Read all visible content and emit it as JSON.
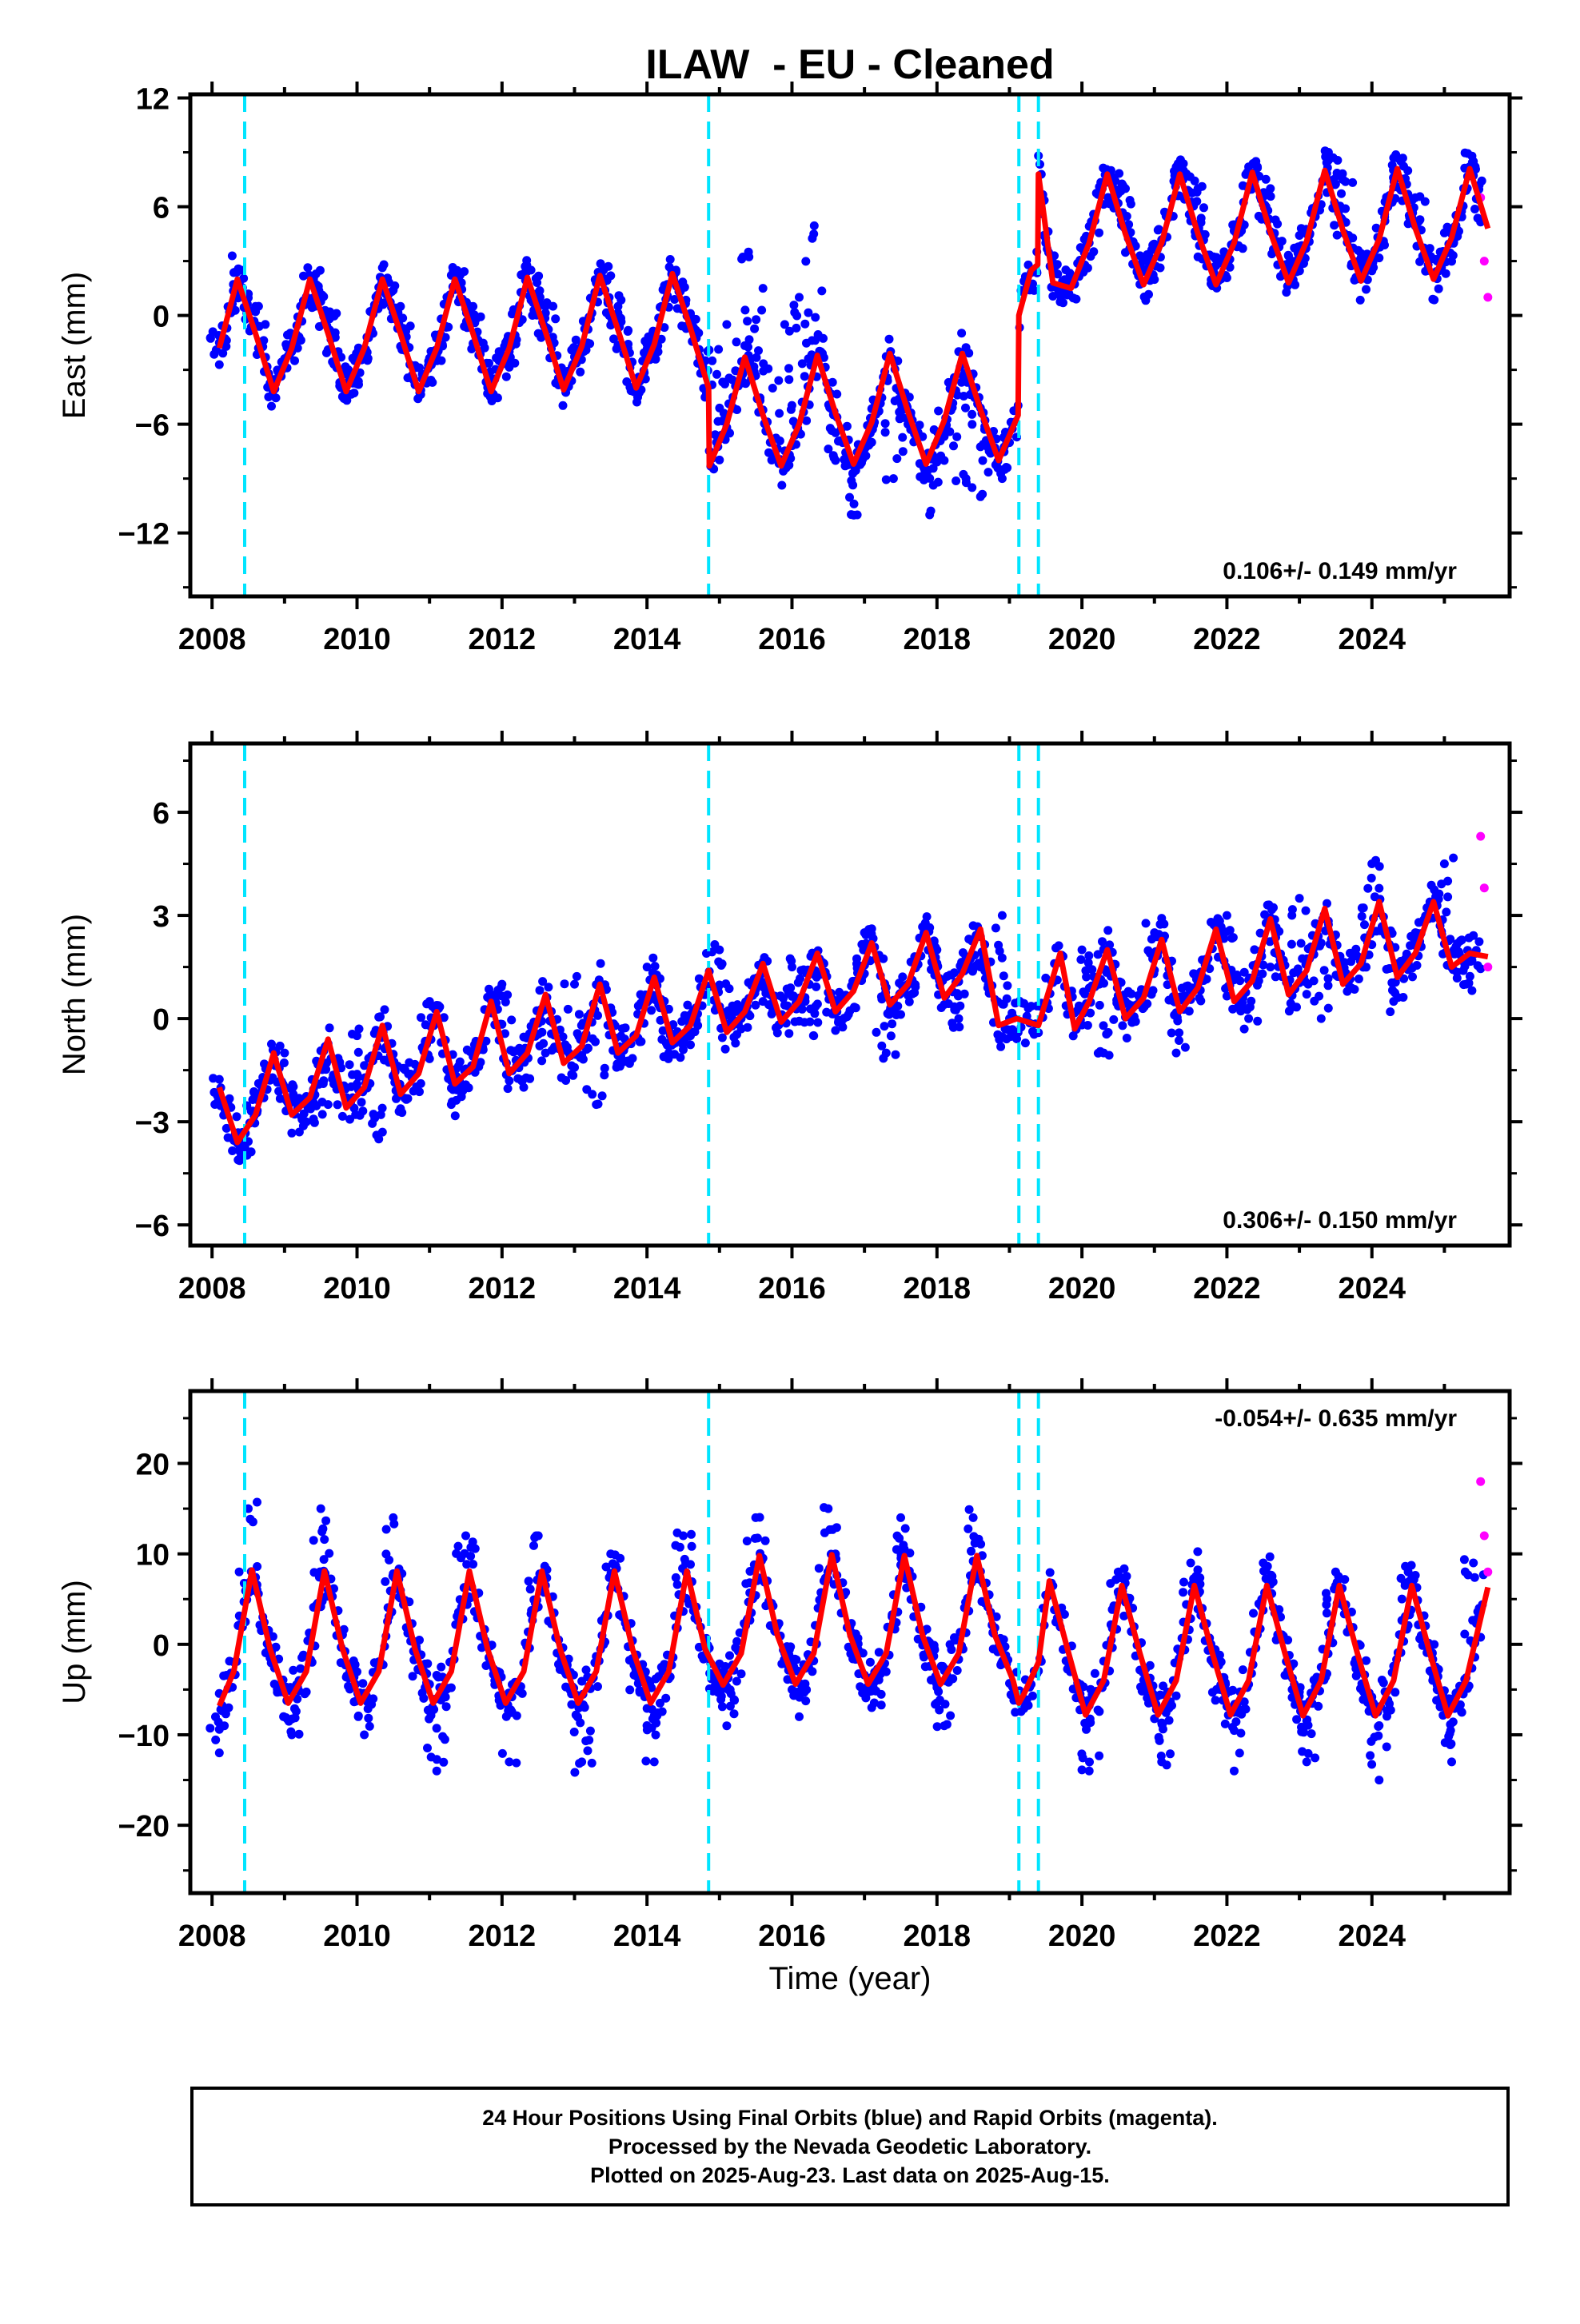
{
  "title": "ILAW  - EU - Cleaned",
  "xlabel": "Time (year)",
  "caption": {
    "line1": "24 Hour Positions Using Final Orbits (blue) and Rapid Orbits (magenta).",
    "line2": "Processed by the Nevada Geodetic Laboratory.",
    "line3": "Plotted on 2025-Aug-23. Last data on 2025-Aug-15."
  },
  "colors": {
    "final": "#0000ff",
    "rapid": "#ff00ff",
    "model": "#ff0000",
    "breaks": "#00e5ff",
    "axes": "#000000"
  },
  "chart_data": [
    {
      "type": "scatter",
      "ylabel": "East (mm)",
      "rate": "0.106+/- 0.149 mm/yr",
      "xlim": [
        2007.7,
        2025.9
      ],
      "ylim": [
        -15.5,
        12.2
      ],
      "yticks": [
        12,
        6,
        0,
        -6,
        -12
      ],
      "ytick_labels": [
        "12",
        "6",
        "0",
        "−6",
        "−12"
      ],
      "xticks": [
        2008,
        2010,
        2012,
        2014,
        2016,
        2018,
        2020,
        2022,
        2024
      ],
      "breaks": [
        2008.45,
        2014.85,
        2019.13,
        2019.4
      ],
      "series": [
        {
          "name": "Final Orbits",
          "x": [
            2008.1,
            2008.4,
            2008.6,
            2008.9,
            2009.1,
            2009.4,
            2009.6,
            2009.9,
            2010.1,
            2010.4,
            2010.6,
            2010.9,
            2011.1,
            2011.4,
            2011.6,
            2011.9,
            2012.1,
            2012.4,
            2012.6,
            2012.9,
            2013.1,
            2013.4,
            2013.6,
            2013.9,
            2014.1,
            2014.4,
            2014.6,
            2014.9,
            2015.1,
            2015.4,
            2015.6,
            2015.9,
            2016.1,
            2016.3,
            2016.6,
            2016.9,
            2017.1,
            2017.4,
            2017.6,
            2017.9,
            2018.1,
            2018.4,
            2018.6,
            2018.9,
            2019.5,
            2019.8,
            2020.1,
            2020.4,
            2020.6,
            2020.9,
            2021.1,
            2021.4,
            2021.6,
            2021.9,
            2022.1,
            2022.4,
            2022.6,
            2022.9,
            2023.1,
            2023.4,
            2023.6,
            2023.9,
            2024.1,
            2024.4,
            2024.6,
            2024.9,
            2025.1,
            2025.4
          ],
          "values": [
            -1.5,
            2.5,
            0.5,
            -3.5,
            -2.0,
            2.0,
            0.0,
            -3.5,
            -2.0,
            2.0,
            0.5,
            -3.5,
            -2.5,
            2.0,
            0.5,
            -3.5,
            -2.0,
            2.5,
            0.5,
            -3.5,
            -2.0,
            2.5,
            0.5,
            -3.5,
            -1.5,
            2.5,
            0.0,
            -2.5,
            -0.5,
            3.5,
            1.5,
            -0.5,
            1.0,
            4.5,
            -8.0,
            -11.0,
            -7.0,
            -9.0,
            -6.0,
            -11.0,
            -8.0,
            -9.0,
            -10.0,
            -9.0,
            4.0,
            2.0,
            4.0,
            8.0,
            7.0,
            3.0,
            4.0,
            8.0,
            7.0,
            3.0,
            4.0,
            8.5,
            7.0,
            3.0,
            4.5,
            9.0,
            7.5,
            3.0,
            4.0,
            8.5,
            6.5,
            3.0,
            4.5,
            8.5
          ]
        },
        {
          "name": "Rapid Orbits",
          "x": [
            2025.5,
            2025.55,
            2025.6
          ],
          "values": [
            6.5,
            3.0,
            1.0
          ]
        },
        {
          "name": "Model",
          "x": [
            2008.1,
            2008.35,
            2008.6,
            2008.85,
            2009.1,
            2009.35,
            2009.6,
            2009.85,
            2010.1,
            2010.35,
            2010.6,
            2010.85,
            2011.1,
            2011.35,
            2011.6,
            2011.85,
            2012.1,
            2012.35,
            2012.6,
            2012.85,
            2013.1,
            2013.35,
            2013.6,
            2013.85,
            2014.1,
            2014.35,
            2014.6,
            2014.85,
            2014.86,
            2015.1,
            2015.35,
            2015.6,
            2015.85,
            2016.1,
            2016.35,
            2016.6,
            2016.85,
            2017.1,
            2017.35,
            2017.6,
            2017.85,
            2018.1,
            2018.35,
            2018.6,
            2018.85,
            2019.12,
            2019.13,
            2019.3,
            2019.39,
            2019.4,
            2019.6,
            2019.85,
            2020.1,
            2020.35,
            2020.6,
            2020.85,
            2021.1,
            2021.35,
            2021.6,
            2021.85,
            2022.1,
            2022.35,
            2022.6,
            2022.85,
            2023.1,
            2023.35,
            2023.6,
            2023.85,
            2024.1,
            2024.35,
            2024.6,
            2024.85,
            2025.1,
            2025.35,
            2025.6
          ],
          "values": [
            -1.8,
            2.0,
            -1.0,
            -4.2,
            -1.8,
            2.0,
            -1.0,
            -4.2,
            -1.8,
            2.0,
            -1.0,
            -4.2,
            -1.8,
            2.0,
            -1.0,
            -4.2,
            -1.8,
            2.1,
            -0.9,
            -4.1,
            -1.7,
            2.2,
            -0.8,
            -4.0,
            -1.6,
            2.3,
            -0.7,
            -4.0,
            -8.3,
            -6.0,
            -2.3,
            -5.5,
            -8.3,
            -6.0,
            -2.2,
            -5.4,
            -8.2,
            -5.9,
            -2.1,
            -5.3,
            -8.2,
            -5.8,
            -2.1,
            -5.2,
            -8.0,
            -5.5,
            0.0,
            2.5,
            2.8,
            7.8,
            1.8,
            1.5,
            4.0,
            7.8,
            4.5,
            1.7,
            4.0,
            7.8,
            4.5,
            1.7,
            4.0,
            7.9,
            4.6,
            1.8,
            4.1,
            8.0,
            4.7,
            1.9,
            4.2,
            8.1,
            4.8,
            2.0,
            4.3,
            8.1,
            4.8
          ]
        }
      ]
    },
    {
      "type": "scatter",
      "ylabel": "North (mm)",
      "rate": "0.306+/- 0.150 mm/yr",
      "xlim": [
        2007.7,
        2025.9
      ],
      "ylim": [
        -6.6,
        8.0
      ],
      "yticks": [
        6,
        3,
        0,
        -3,
        -6
      ],
      "ytick_labels": [
        "6",
        "3",
        "0",
        "−3",
        "−6"
      ],
      "xticks": [
        2008,
        2010,
        2012,
        2014,
        2016,
        2018,
        2020,
        2022,
        2024
      ],
      "breaks": [
        2008.45,
        2014.85,
        2019.13,
        2019.4
      ],
      "series": [
        {
          "name": "Final Orbits",
          "x": [
            2008.1,
            2008.4,
            2008.7,
            2009.0,
            2009.3,
            2009.6,
            2010.0,
            2010.3,
            2010.6,
            2011.0,
            2011.3,
            2011.6,
            2012.0,
            2012.3,
            2012.6,
            2013.0,
            2013.3,
            2013.6,
            2014.0,
            2014.3,
            2014.6,
            2015.0,
            2015.3,
            2015.6,
            2016.0,
            2016.3,
            2016.6,
            2017.0,
            2017.3,
            2017.6,
            2018.0,
            2018.3,
            2018.6,
            2018.9,
            2020.0,
            2020.3,
            2020.6,
            2021.0,
            2021.3,
            2021.6,
            2022.0,
            2022.3,
            2022.6,
            2023.0,
            2023.3,
            2023.6,
            2024.0,
            2024.3,
            2024.6,
            2025.0,
            2025.3
          ],
          "values": [
            -2.5,
            -4.0,
            -2.0,
            -1.0,
            -3.0,
            -2.5,
            -0.5,
            -3.5,
            -2.0,
            0.5,
            -2.5,
            -1.5,
            1.0,
            -2.0,
            -1.0,
            1.0,
            -2.5,
            -1.0,
            1.5,
            -1.0,
            -0.5,
            2.0,
            0.0,
            0.5,
            1.5,
            -0.5,
            0.5,
            2.5,
            -1.0,
            1.0,
            2.0,
            0.0,
            1.5,
            3.0,
            2.0,
            -1.0,
            0.5,
            2.5,
            -1.0,
            1.0,
            3.0,
            0.0,
            1.5,
            3.5,
            0.0,
            1.5,
            4.5,
            0.5,
            2.5,
            4.5,
            1.0
          ]
        },
        {
          "name": "Rapid Orbits",
          "x": [
            2025.5,
            2025.55,
            2025.6
          ],
          "values": [
            5.3,
            3.8,
            1.5
          ]
        },
        {
          "name": "Model",
          "x": [
            2008.1,
            2008.35,
            2008.6,
            2008.85,
            2009.1,
            2009.35,
            2009.6,
            2009.85,
            2010.1,
            2010.35,
            2010.6,
            2010.85,
            2011.1,
            2011.35,
            2011.6,
            2011.85,
            2012.1,
            2012.35,
            2012.6,
            2012.85,
            2013.1,
            2013.35,
            2013.6,
            2013.85,
            2014.1,
            2014.35,
            2014.6,
            2014.85,
            2015.1,
            2015.35,
            2015.6,
            2015.85,
            2016.1,
            2016.35,
            2016.6,
            2016.85,
            2017.1,
            2017.35,
            2017.6,
            2017.85,
            2018.1,
            2018.35,
            2018.6,
            2018.85,
            2019.1,
            2019.4,
            2019.7,
            2019.9,
            2020.1,
            2020.35,
            2020.6,
            2020.85,
            2021.1,
            2021.35,
            2021.6,
            2021.85,
            2022.1,
            2022.35,
            2022.6,
            2022.85,
            2023.1,
            2023.35,
            2023.6,
            2023.85,
            2024.1,
            2024.35,
            2024.6,
            2024.85,
            2025.1,
            2025.35,
            2025.6
          ],
          "values": [
            -2.0,
            -3.6,
            -2.8,
            -1.0,
            -2.8,
            -2.3,
            -0.6,
            -2.6,
            -2.0,
            -0.2,
            -2.2,
            -1.6,
            0.2,
            -1.9,
            -1.4,
            0.5,
            -1.6,
            -1.0,
            0.7,
            -1.3,
            -0.8,
            1.0,
            -1.0,
            -0.5,
            1.2,
            -0.7,
            -0.2,
            1.4,
            -0.4,
            0.2,
            1.6,
            -0.1,
            0.5,
            1.9,
            0.2,
            0.8,
            2.2,
            0.4,
            1.0,
            2.5,
            0.6,
            1.3,
            2.6,
            -0.2,
            0.0,
            -0.2,
            1.9,
            -0.3,
            0.5,
            2.0,
            0.0,
            0.6,
            2.3,
            0.2,
            0.9,
            2.6,
            0.5,
            1.1,
            2.9,
            0.7,
            1.4,
            3.2,
            1.0,
            1.6,
            3.4,
            1.2,
            1.9,
            3.4,
            1.5,
            1.9,
            1.8
          ]
        }
      ]
    },
    {
      "type": "scatter",
      "ylabel": "Up (mm)",
      "rate": "-0.054+/- 0.635 mm/yr",
      "xlim": [
        2007.7,
        2025.9
      ],
      "ylim": [
        -27.5,
        28.0
      ],
      "yticks": [
        20,
        10,
        0,
        -10,
        -20
      ],
      "ytick_labels": [
        "20",
        "10",
        "0",
        "−10",
        "−20"
      ],
      "xticks": [
        2008,
        2010,
        2012,
        2014,
        2016,
        2018,
        2020,
        2022,
        2024
      ],
      "breaks": [
        2008.45,
        2014.85,
        2019.13,
        2019.4
      ],
      "series": [
        {
          "name": "Final Orbits",
          "x": [
            2008.1,
            2008.5,
            2008.9,
            2009.1,
            2009.5,
            2009.9,
            2010.1,
            2010.5,
            2010.9,
            2011.1,
            2011.5,
            2011.9,
            2012.1,
            2012.5,
            2012.9,
            2013.1,
            2013.5,
            2013.9,
            2014.1,
            2014.5,
            2014.9,
            2015.1,
            2015.5,
            2015.9,
            2016.1,
            2016.5,
            2016.9,
            2017.1,
            2017.5,
            2017.9,
            2018.1,
            2018.5,
            2018.9,
            2020.1,
            2020.5,
            2020.9,
            2021.1,
            2021.5,
            2021.9,
            2022.1,
            2022.5,
            2022.9,
            2023.1,
            2023.5,
            2023.9,
            2024.1,
            2024.5,
            2024.9,
            2025.1,
            2025.4
          ],
          "values": [
            -12.0,
            15.0,
            -5.0,
            -10.0,
            15.0,
            -3.0,
            -10.0,
            14.0,
            -3.0,
            -14.0,
            12.0,
            -4.0,
            -13.0,
            12.0,
            -3.0,
            -13.0,
            10.0,
            -4.0,
            -13.0,
            12.0,
            -5.0,
            -9.0,
            14.0,
            -1.0,
            -8.0,
            15.0,
            0.0,
            -7.0,
            14.0,
            -1.0,
            -9.0,
            14.0,
            -2.0,
            -14.0,
            8.0,
            -5.0,
            -13.0,
            9.0,
            -5.0,
            -14.0,
            9.0,
            -5.0,
            -13.0,
            8.0,
            -5.0,
            -15.0,
            8.0,
            -5.0,
            -13.0,
            9.0
          ]
        },
        {
          "name": "Rapid Orbits",
          "x": [
            2025.5,
            2025.55,
            2025.6
          ],
          "values": [
            18.0,
            12.0,
            8.0
          ]
        },
        {
          "name": "Model",
          "x": [
            2008.1,
            2008.3,
            2008.55,
            2008.8,
            2009.05,
            2009.3,
            2009.55,
            2009.8,
            2010.05,
            2010.3,
            2010.55,
            2010.8,
            2011.05,
            2011.3,
            2011.55,
            2011.8,
            2012.05,
            2012.3,
            2012.55,
            2012.8,
            2013.05,
            2013.3,
            2013.55,
            2013.8,
            2014.05,
            2014.3,
            2014.55,
            2014.8,
            2015.05,
            2015.3,
            2015.55,
            2015.8,
            2016.05,
            2016.3,
            2016.55,
            2016.8,
            2017.05,
            2017.3,
            2017.55,
            2017.8,
            2018.05,
            2018.3,
            2018.55,
            2018.8,
            2019.05,
            2019.13,
            2019.2,
            2019.4,
            2019.55,
            2019.8,
            2020.05,
            2020.3,
            2020.55,
            2020.8,
            2021.05,
            2021.3,
            2021.55,
            2021.8,
            2022.05,
            2022.3,
            2022.55,
            2022.8,
            2023.05,
            2023.3,
            2023.55,
            2023.8,
            2024.05,
            2024.3,
            2024.55,
            2024.8,
            2025.05,
            2025.3,
            2025.6
          ],
          "values": [
            -6.8,
            -3.0,
            8.2,
            -0.5,
            -6.5,
            -3.0,
            8.1,
            -0.5,
            -6.5,
            -3.0,
            8.1,
            -0.5,
            -6.5,
            -3.0,
            8.1,
            -0.5,
            -6.5,
            -3.0,
            8.1,
            -0.5,
            -6.5,
            -3.0,
            8.1,
            -0.5,
            -6.5,
            -3.0,
            8.1,
            -0.5,
            -4.5,
            -1.0,
            9.8,
            1.0,
            -4.4,
            -1.0,
            9.9,
            1.0,
            -4.4,
            -1.0,
            9.8,
            1.0,
            -4.4,
            -1.0,
            9.8,
            1.0,
            -4.0,
            -6.5,
            -5.5,
            -2.0,
            7.0,
            -0.5,
            -7.8,
            -4.0,
            6.5,
            -1.0,
            -7.8,
            -4.0,
            6.5,
            -1.0,
            -7.8,
            -4.0,
            6.5,
            -1.0,
            -7.9,
            -4.0,
            6.5,
            -1.0,
            -7.9,
            -4.0,
            6.5,
            -1.0,
            -7.9,
            -4.0,
            6.3
          ]
        }
      ]
    }
  ]
}
